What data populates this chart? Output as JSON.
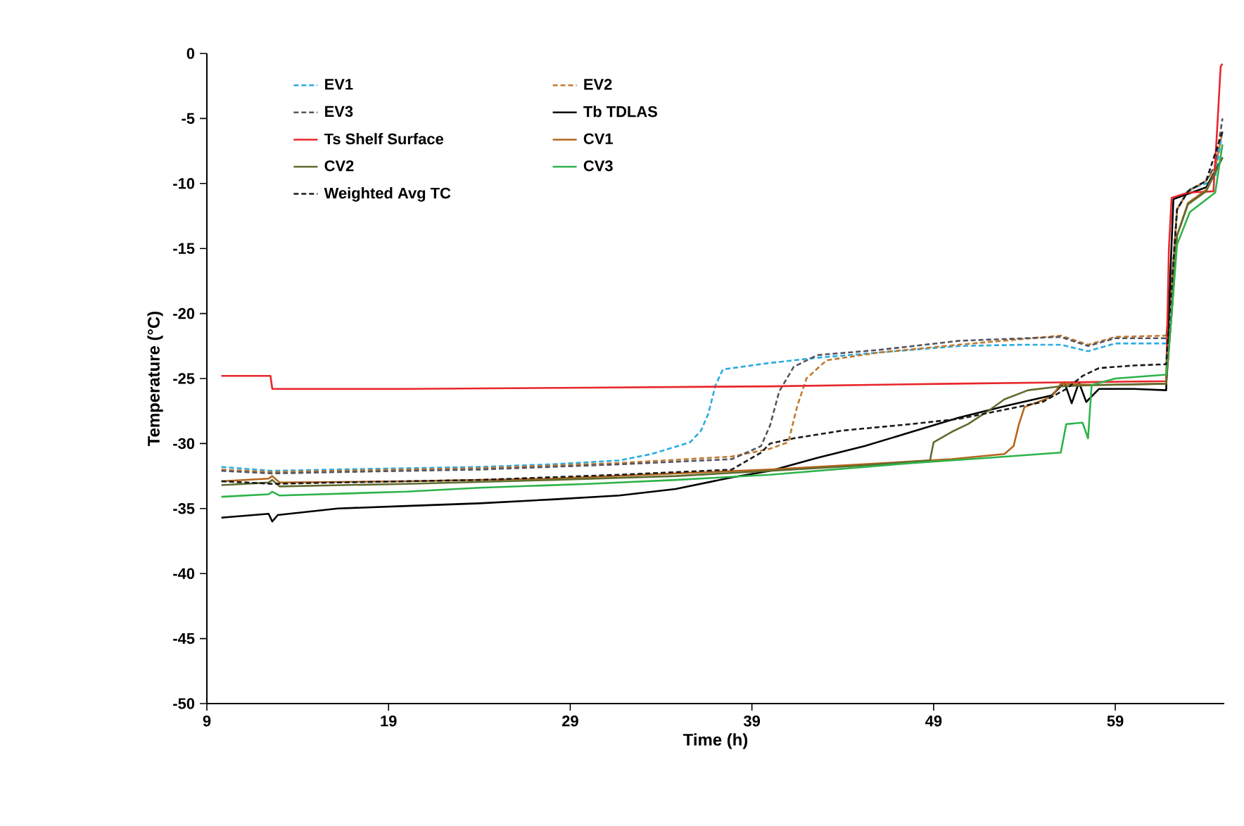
{
  "chart_data": {
    "type": "line",
    "xlabel": "Time (h)",
    "ylabel": "Temperature (°C)",
    "xlim": [
      9,
      65
    ],
    "xticks": [
      9,
      19,
      29,
      39,
      49,
      59
    ],
    "ylim": [
      -50,
      0
    ],
    "yticks": [
      0,
      -5,
      -10,
      -15,
      -20,
      -25,
      -30,
      -35,
      -40,
      -45,
      -50
    ],
    "grid": false,
    "legend": "top left",
    "marker": "none",
    "series": [
      {
        "name": "EV1",
        "color": "#29abe2",
        "line_style": "dashed",
        "x": [
          9.8,
          12.6,
          16,
          20,
          24,
          28,
          31.7,
          33.5,
          35.6,
          36.2,
          36.6,
          37.0,
          37.4,
          40,
          42.6,
          46,
          50.4,
          54,
          56,
          57.5,
          59,
          61.8,
          62.1,
          62.4,
          63,
          64,
          64.5,
          64.9
        ],
        "values": [
          -31.8,
          -32.1,
          -32.0,
          -31.9,
          -31.8,
          -31.6,
          -31.3,
          -30.8,
          -29.9,
          -29,
          -27.7,
          -25.5,
          -24.3,
          -23.8,
          -23.4,
          -23,
          -22.5,
          -22.4,
          -22.4,
          -22.9,
          -22.3,
          -22.3,
          -18,
          -12,
          -10.5,
          -10,
          -9.5,
          -6
        ]
      },
      {
        "name": "EV2",
        "color": "#c07a30",
        "line_style": "dashed",
        "x": [
          9.8,
          12.6,
          16,
          24,
          31.7,
          37.9,
          40,
          41,
          41.5,
          42,
          43.1,
          46,
          50.4,
          56,
          57.5,
          59,
          61.8,
          62.1,
          62.4,
          63,
          64,
          64.5,
          64.9
        ],
        "values": [
          -32.0,
          -32.2,
          -32.1,
          -31.9,
          -31.5,
          -31.0,
          -30.4,
          -29.9,
          -27.1,
          -25,
          -23.6,
          -23,
          -22.4,
          -21.7,
          -22.4,
          -21.8,
          -21.7,
          -18,
          -12,
          -10.6,
          -9.8,
          -8.8,
          -6
        ]
      },
      {
        "name": "EV3",
        "color": "#555560",
        "line_style": "dashed",
        "x": [
          9.8,
          12.6,
          16,
          24,
          31.7,
          37.9,
          39.5,
          40,
          40.5,
          41.3,
          42.6,
          46,
          50.4,
          56,
          57.5,
          59,
          61.8,
          62.1,
          62.4,
          63,
          64,
          64.5,
          64.9
        ],
        "values": [
          -32.1,
          -32.3,
          -32.2,
          -32.0,
          -31.6,
          -31.2,
          -30.2,
          -28.6,
          -26,
          -24.1,
          -23.2,
          -22.8,
          -22.1,
          -21.8,
          -22.5,
          -21.9,
          -21.9,
          -18,
          -12,
          -10.6,
          -9.8,
          -8.6,
          -5
        ]
      },
      {
        "name": "Tb TDLAS",
        "color": "#000000",
        "line_style": "solid",
        "x": [
          9.8,
          12.4,
          12.6,
          12.9,
          16.2,
          20,
          24,
          28,
          31.7,
          34.8,
          37.9,
          40,
          42.6,
          45.2,
          47.8,
          50.4,
          53,
          55.5,
          56.2,
          56.6,
          57,
          57.4,
          58.1,
          60,
          61.8,
          62.0,
          62.2,
          63,
          64,
          64.9
        ],
        "values": [
          -35.7,
          -35.4,
          -36.0,
          -35.5,
          -35.0,
          -34.8,
          -34.6,
          -34.3,
          -34.0,
          -33.5,
          -32.6,
          -32.1,
          -31.1,
          -30.2,
          -29.1,
          -28.0,
          -27.1,
          -26.3,
          -25.3,
          -26.9,
          -25.3,
          -26.8,
          -25.8,
          -25.8,
          -25.9,
          -18,
          -11.2,
          -10.8,
          -10.3,
          -8
        ]
      },
      {
        "name": "Ts Shelf Surface",
        "color": "#e8262b",
        "line_style": "solid",
        "x": [
          9.8,
          12.5,
          12.6,
          20,
          30,
          40,
          50,
          56,
          61.8,
          61.95,
          62.1,
          63,
          64.4,
          64.6,
          64.8,
          64.9
        ],
        "values": [
          -24.8,
          -24.8,
          -25.8,
          -25.8,
          -25.7,
          -25.6,
          -25.4,
          -25.3,
          -25.2,
          -15,
          -11.1,
          -10.7,
          -10.6,
          -6,
          -1,
          -0.8
        ]
      },
      {
        "name": "CV1",
        "color": "#b5651d",
        "line_style": "solid",
        "x": [
          9.8,
          12.4,
          12.6,
          13,
          20,
          28,
          34.8,
          40,
          45,
          50,
          52.9,
          53.4,
          53.7,
          54,
          55.5,
          56,
          58,
          61.8,
          62.1,
          62.4,
          63,
          64,
          64.9
        ],
        "values": [
          -32.9,
          -32.7,
          -32.5,
          -33.0,
          -32.9,
          -32.7,
          -32.3,
          -32.0,
          -31.6,
          -31.2,
          -30.8,
          -30.2,
          -28.5,
          -27.2,
          -26.4,
          -25.4,
          -25.5,
          -25.4,
          -20,
          -14,
          -11.5,
          -10.5,
          -8
        ]
      },
      {
        "name": "CV2",
        "color": "#5f6b2e",
        "line_style": "solid",
        "x": [
          9.8,
          12.4,
          12.6,
          13,
          20,
          28,
          34.8,
          40,
          45,
          48.8,
          49,
          50,
          50.9,
          52,
          52.9,
          54.2,
          56,
          58,
          61.8,
          62.1,
          62.4,
          63,
          64,
          64.9
        ],
        "values": [
          -33.2,
          -33.0,
          -32.8,
          -33.3,
          -33.1,
          -32.8,
          -32.5,
          -32.1,
          -31.7,
          -31.3,
          -29.9,
          -29.1,
          -28.5,
          -27.5,
          -26.6,
          -25.9,
          -25.6,
          -25.5,
          -25.4,
          -20,
          -14,
          -11.6,
          -10.6,
          -8
        ]
      },
      {
        "name": "CV3",
        "color": "#2db34a",
        "line_style": "solid",
        "x": [
          9.8,
          12.4,
          12.6,
          13,
          20,
          24,
          30,
          34.8,
          40,
          47.8,
          52,
          56,
          56.3,
          57.2,
          57.5,
          57.7,
          59,
          61.8,
          62.1,
          62.4,
          63.1,
          64.5,
          64.9
        ],
        "values": [
          -34.1,
          -33.9,
          -33.7,
          -34.0,
          -33.7,
          -33.4,
          -33.1,
          -32.8,
          -32.4,
          -31.5,
          -31.1,
          -30.7,
          -28.5,
          -28.4,
          -29.6,
          -25.5,
          -25.0,
          -24.7,
          -20.1,
          -14.7,
          -12.2,
          -10.7,
          -7
        ]
      },
      {
        "name": "Weighted Avg TC",
        "color": "#1a1a1a",
        "line_style": "dashed",
        "x": [
          9.8,
          12.6,
          16,
          24,
          31.7,
          37.9,
          39.5,
          40,
          41.3,
          44,
          47.8,
          50.4,
          52.9,
          55,
          56.3,
          57.2,
          58.1,
          60,
          61.8,
          62.1,
          62.4,
          63,
          64,
          64.9
        ],
        "values": [
          -32.9,
          -33.1,
          -33.0,
          -32.8,
          -32.4,
          -32.0,
          -30.7,
          -30.0,
          -29.6,
          -29.0,
          -28.5,
          -28.1,
          -27.4,
          -26.8,
          -25.8,
          -24.8,
          -24.2,
          -24.0,
          -23.9,
          -18,
          -12,
          -10.6,
          -9.8,
          -6
        ]
      }
    ]
  }
}
